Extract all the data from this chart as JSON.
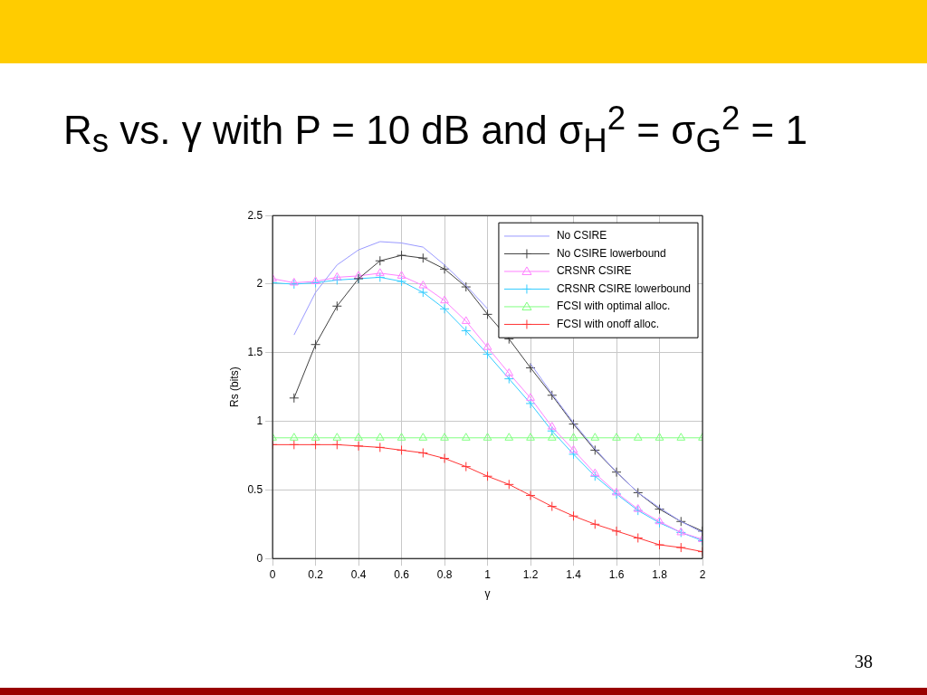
{
  "chart_data": {
    "type": "line",
    "title": "R$_{s}$ vs. γ with P = 10 dB and σ$_{H}$$^{2}$ = σ$_{G}$$^{2}$ = 1",
    "xlabel": "γ",
    "ylabel": "Rs (bits)",
    "annotations": [
      "38"
    ],
    "x": [
      0,
      0.1,
      0.2,
      0.3,
      0.4,
      0.5,
      0.6,
      0.7,
      0.8,
      0.9,
      1,
      1.1,
      1.2,
      1.3,
      1.4,
      1.5,
      1.6,
      1.7,
      1.8,
      1.9,
      2
    ],
    "xlim": [
      0,
      2
    ],
    "xticks": [
      0,
      0.2,
      0.4,
      0.6,
      0.8,
      1,
      1.2,
      1.4,
      1.6,
      1.8,
      2
    ],
    "ylim": [
      0,
      2.5
    ],
    "yticks": [
      0,
      0.5,
      1,
      1.5,
      2,
      2.5
    ],
    "grid": true,
    "legend": "top right",
    "series": [
      {
        "name": "No CSIRE",
        "color": "#9999ff",
        "marker": "none",
        "values": [
          null,
          1.63,
          1.94,
          2.14,
          2.25,
          2.31,
          2.3,
          2.27,
          2.14,
          1.99,
          1.82,
          null,
          1.42,
          1.2,
          0.99,
          0.8,
          0.63,
          0.48,
          0.37,
          0.27,
          0.19
        ]
      },
      {
        "name": "No CSIRE lowerbound",
        "color": "#404040",
        "marker": "cross",
        "values": [
          null,
          1.17,
          1.56,
          1.84,
          2.04,
          2.17,
          2.21,
          2.19,
          2.11,
          1.98,
          1.78,
          1.6,
          1.39,
          1.19,
          0.98,
          0.79,
          0.63,
          0.48,
          0.36,
          0.27,
          0.2
        ]
      },
      {
        "name": "CRSNR CSIRE",
        "color": "#ff80ff",
        "marker": "triangle",
        "values": [
          2.04,
          2.01,
          2.02,
          2.05,
          2.06,
          2.08,
          2.06,
          1.99,
          1.88,
          1.73,
          1.54,
          1.35,
          1.17,
          0.96,
          0.79,
          0.62,
          0.48,
          0.36,
          0.27,
          0.19,
          0.14
        ]
      },
      {
        "name": "CRSNR CSIRE lowerbound",
        "color": "#33ccff",
        "marker": "cross",
        "values": [
          2.01,
          2,
          2.01,
          2.03,
          2.04,
          2.05,
          2.02,
          1.94,
          1.82,
          1.66,
          1.49,
          1.31,
          1.13,
          0.93,
          0.76,
          0.6,
          0.47,
          0.35,
          0.26,
          0.19,
          0.13
        ]
      },
      {
        "name": "FCSI with optimal alloc.",
        "color": "#80ff80",
        "marker": "triangle",
        "values": [
          0.88,
          0.88,
          0.88,
          0.88,
          0.88,
          0.88,
          0.88,
          0.88,
          0.88,
          0.88,
          0.88,
          0.88,
          0.88,
          0.88,
          0.88,
          0.88,
          0.88,
          0.88,
          0.88,
          0.88,
          0.88
        ]
      },
      {
        "name": "FCSI with onoff alloc.",
        "color": "#ff3333",
        "marker": "cross",
        "values": [
          0.83,
          0.83,
          0.83,
          0.83,
          0.82,
          0.81,
          0.79,
          0.77,
          0.73,
          0.67,
          0.6,
          0.54,
          0.46,
          0.38,
          0.31,
          0.25,
          0.2,
          0.15,
          0.1,
          0.08,
          0.05
        ]
      }
    ]
  }
}
